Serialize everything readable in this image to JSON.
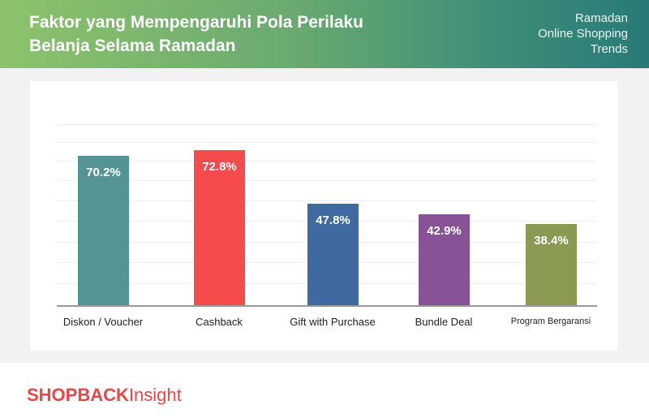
{
  "header": {
    "title_line1": "Faktor yang Mempengaruhi Pola Perilaku",
    "title_line2": "Belanja Selama Ramadan",
    "subtitle_line1": "Ramadan",
    "subtitle_line2": "Online Shopping",
    "subtitle_line3": "Trends"
  },
  "footer": {
    "brand": "SHOPBACK",
    "product": "Insight"
  },
  "colors": {
    "diskon": "#559494",
    "cashback": "#f54b4d",
    "gift": "#3f6aa1",
    "bundle": "#885296",
    "program": "#8a9a52",
    "brand_red": "#e8474a"
  },
  "chart_data": {
    "type": "bar",
    "title": "Faktor yang Mempengaruhi Pola Perilaku Belanja Selama Ramadan",
    "subtitle": "Ramadan Online Shopping Trends",
    "categories": [
      "Diskon / Voucher",
      "Cashback",
      "Gift with Purchase",
      "Bundle Deal",
      "Program Bergaransi"
    ],
    "values": [
      70.2,
      72.8,
      47.8,
      42.9,
      38.4
    ],
    "labels": [
      "70.2%",
      "72.8%",
      "47.8%",
      "42.9%",
      "38.4%"
    ],
    "xlabel": "",
    "ylabel": "",
    "ylim": [
      0,
      90
    ],
    "grid": true,
    "legend": "none"
  }
}
